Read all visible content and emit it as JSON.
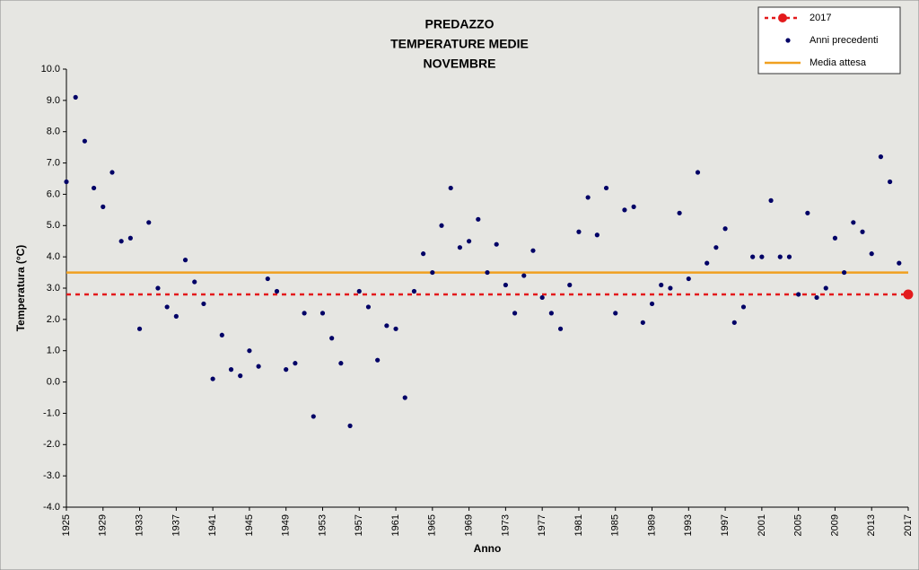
{
  "chart_data": {
    "type": "scatter",
    "title": [
      "PREDAZZO",
      "TEMPERATURE MEDIE",
      "NOVEMBRE"
    ],
    "x_label": "Anno",
    "y_label": "Temperatura (°C)",
    "xlim": [
      1925,
      2017
    ],
    "ylim": [
      -4,
      10
    ],
    "xticks": [
      1925,
      1929,
      1933,
      1937,
      1941,
      1945,
      1949,
      1953,
      1957,
      1961,
      1965,
      1969,
      1973,
      1977,
      1981,
      1985,
      1989,
      1993,
      1997,
      2001,
      2005,
      2009,
      2013,
      2017
    ],
    "yticks": [
      {
        "value": -4,
        "label": "-4.0"
      },
      {
        "value": -3,
        "label": "-3.0"
      },
      {
        "value": -2,
        "label": "-2.0"
      },
      {
        "value": -1,
        "label": "-1.0"
      },
      {
        "value": 0,
        "label": "0.0"
      },
      {
        "value": 1,
        "label": "1.0"
      },
      {
        "value": 2,
        "label": "2.0"
      },
      {
        "value": 3,
        "label": "3.0"
      },
      {
        "value": 4,
        "label": "4.0"
      },
      {
        "value": 5,
        "label": "5.0"
      },
      {
        "value": 6,
        "label": "6.0"
      },
      {
        "value": 7,
        "label": "7.0"
      },
      {
        "value": 8,
        "label": "8.0"
      },
      {
        "value": 9,
        "label": "9.0"
      },
      {
        "value": 10,
        "label": "10.0"
      }
    ],
    "grid": false,
    "legend": "top-right",
    "series": [
      {
        "name": "2017",
        "kind": "highlight",
        "color": "#e31a1c",
        "x": [
          2017
        ],
        "values": [
          2.8
        ]
      },
      {
        "name": "Anni precedenti",
        "kind": "points",
        "color": "#000066",
        "x": [
          1925,
          1926,
          1927,
          1928,
          1929,
          1930,
          1931,
          1932,
          1933,
          1934,
          1935,
          1936,
          1937,
          1938,
          1939,
          1940,
          1941,
          1942,
          1943,
          1944,
          1945,
          1946,
          1947,
          1948,
          1949,
          1950,
          1951,
          1952,
          1953,
          1954,
          1955,
          1956,
          1957,
          1958,
          1959,
          1960,
          1961,
          1962,
          1963,
          1964,
          1965,
          1966,
          1967,
          1968,
          1969,
          1970,
          1971,
          1972,
          1973,
          1974,
          1975,
          1976,
          1977,
          1978,
          1979,
          1980,
          1981,
          1982,
          1983,
          1984,
          1985,
          1986,
          1987,
          1988,
          1989,
          1990,
          1991,
          1992,
          1993,
          1994,
          1995,
          1996,
          1997,
          1998,
          1999,
          2000,
          2001,
          2002,
          2003,
          2004,
          2005,
          2006,
          2007,
          2008,
          2009,
          2010,
          2011,
          2012,
          2013,
          2014,
          2015,
          2016
        ],
        "values": [
          6.4,
          9.1,
          7.7,
          6.2,
          5.6,
          6.7,
          4.5,
          4.6,
          1.7,
          5.1,
          3.0,
          2.4,
          2.1,
          3.9,
          3.2,
          2.5,
          0.1,
          1.5,
          0.4,
          0.2,
          1.0,
          0.5,
          3.3,
          2.9,
          0.4,
          0.6,
          2.2,
          -1.1,
          2.2,
          1.4,
          0.6,
          -1.4,
          2.9,
          2.4,
          0.7,
          1.8,
          1.7,
          -0.5,
          2.9,
          4.1,
          3.5,
          5.0,
          6.2,
          4.3,
          4.5,
          5.2,
          3.5,
          4.4,
          3.1,
          2.2,
          3.4,
          4.2,
          2.7,
          2.2,
          1.7,
          3.1,
          4.8,
          5.9,
          4.7,
          6.2,
          2.2,
          5.5,
          5.6,
          1.9,
          2.5,
          3.1,
          3.0,
          5.4,
          3.3,
          6.7,
          3.8,
          4.3,
          4.9,
          1.9,
          2.4,
          4.0,
          4.0,
          5.8,
          4.0,
          4.0,
          2.8,
          5.4,
          2.7,
          3.0,
          4.6,
          3.5,
          5.1,
          4.8,
          4.1,
          7.2,
          6.4,
          3.8
        ]
      },
      {
        "name": "Media attesa",
        "kind": "hline",
        "color": "#f0a020",
        "values": [
          3.5
        ]
      }
    ]
  }
}
